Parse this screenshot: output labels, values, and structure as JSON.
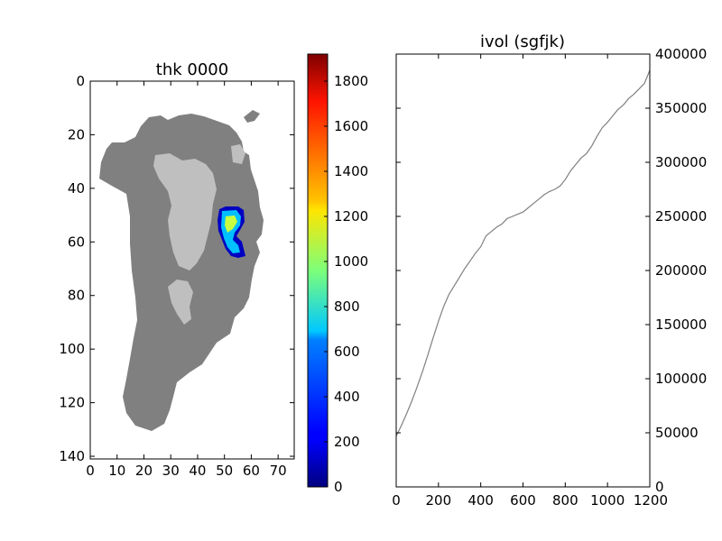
{
  "chart_data": [
    {
      "type": "heatmap",
      "title": "thk 0000",
      "x_ticks": [
        "0",
        "10",
        "20",
        "30",
        "40",
        "50",
        "60",
        "70"
      ],
      "x_tick_values": [
        0,
        10,
        20,
        30,
        40,
        50,
        60,
        70
      ],
      "y_ticks": [
        "0",
        "20",
        "40",
        "60",
        "80",
        "100",
        "120",
        "140"
      ],
      "y_tick_values": [
        0,
        20,
        40,
        60,
        80,
        100,
        120,
        140
      ],
      "xlim": [
        0,
        76
      ],
      "ylim": [
        141,
        0
      ],
      "colors": {
        "land": "#808080",
        "interior": "#bfbfbf",
        "ice_low": "#00008f",
        "ice_mid": "#00c8ff",
        "ice_high": "#c8ff40"
      }
    },
    {
      "type": "colorbar",
      "ticks": [
        "0",
        "200",
        "400",
        "600",
        "800",
        "1000",
        "1200",
        "1400",
        "1600",
        "1800"
      ],
      "tick_values": [
        0,
        200,
        400,
        600,
        800,
        1000,
        1200,
        1400,
        1600,
        1800
      ],
      "range": [
        0,
        1920
      ],
      "colormap": "jet"
    },
    {
      "type": "line",
      "title": "ivol (sgfjk)",
      "x_ticks": [
        "0",
        "200",
        "400",
        "600",
        "800",
        "1000",
        "1200"
      ],
      "x_tick_values": [
        0,
        200,
        400,
        600,
        800,
        1000,
        1200
      ],
      "y_ticks": [
        "0",
        "50000",
        "100000",
        "150000",
        "200000",
        "250000",
        "300000",
        "350000",
        "400000"
      ],
      "y_tick_values": [
        0,
        50000,
        100000,
        150000,
        200000,
        250000,
        300000,
        350000,
        400000
      ],
      "xlim": [
        0,
        1200
      ],
      "ylim": [
        0,
        400000
      ],
      "line_color": "#808080",
      "x": [
        0,
        25,
        50,
        75,
        100,
        125,
        150,
        175,
        200,
        225,
        250,
        275,
        300,
        325,
        350,
        375,
        400,
        425,
        450,
        475,
        500,
        525,
        550,
        575,
        600,
        625,
        650,
        675,
        700,
        725,
        750,
        775,
        800,
        825,
        850,
        875,
        900,
        925,
        950,
        975,
        1000,
        1025,
        1050,
        1075,
        1100,
        1125,
        1150,
        1175,
        1200
      ],
      "y": [
        47000,
        57000,
        68000,
        80000,
        93000,
        107000,
        122000,
        138000,
        153000,
        167000,
        178000,
        186000,
        194000,
        202000,
        209000,
        216000,
        222000,
        232000,
        236000,
        240000,
        243000,
        248000,
        250000,
        252000,
        254000,
        258000,
        262000,
        266000,
        270000,
        273000,
        275000,
        278000,
        284000,
        292000,
        298000,
        304000,
        308000,
        315000,
        324000,
        332000,
        337000,
        343000,
        349000,
        353000,
        359000,
        363000,
        368000,
        373000,
        385000
      ]
    }
  ]
}
